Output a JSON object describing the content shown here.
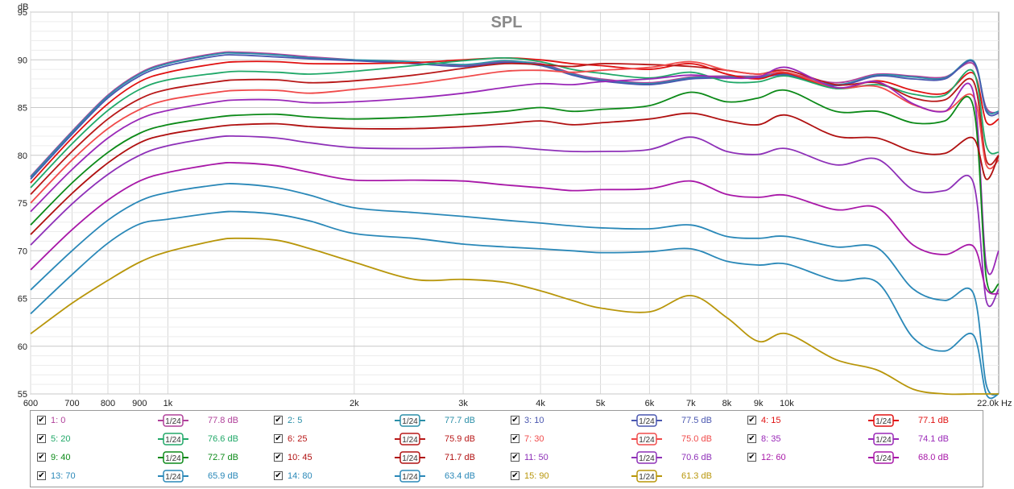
{
  "chart_data": {
    "type": "line",
    "title": "SPL",
    "ylabel": "dB",
    "xunit": "Hz",
    "xscale": "log",
    "xlim": [
      600,
      22000
    ],
    "ylim": [
      55,
      95
    ],
    "grid": true,
    "x_ticks": [
      {
        "v": 600,
        "label": "600"
      },
      {
        "v": 700,
        "label": "700"
      },
      {
        "v": 800,
        "label": "800"
      },
      {
        "v": 900,
        "label": "900"
      },
      {
        "v": 1000,
        "label": "1k"
      },
      {
        "v": 2000,
        "label": "2k"
      },
      {
        "v": 3000,
        "label": "3k"
      },
      {
        "v": 4000,
        "label": "4k"
      },
      {
        "v": 5000,
        "label": "5k"
      },
      {
        "v": 6000,
        "label": "6k"
      },
      {
        "v": 7000,
        "label": "7k"
      },
      {
        "v": 8000,
        "label": "8k"
      },
      {
        "v": 9000,
        "label": "9k"
      },
      {
        "v": 10000,
        "label": "10k"
      },
      {
        "v": 22000,
        "label": "22.0k"
      }
    ],
    "y_ticks": [
      55,
      60,
      65,
      70,
      75,
      80,
      85,
      90,
      95
    ],
    "x": [
      600,
      700,
      800,
      900,
      1000,
      1200,
      1300,
      1500,
      1700,
      2000,
      2500,
      3000,
      3500,
      4000,
      4500,
      5000,
      6000,
      7000,
      8000,
      9000,
      10000,
      12000,
      14000,
      16000,
      18000,
      20000,
      21000,
      22000
    ],
    "series": [
      {
        "name": "1: 0",
        "legend_value": "77.8 dB",
        "color": "#b0409a",
        "values": [
          77.8,
          82.5,
          86.3,
          88.6,
          89.7,
          90.7,
          90.8,
          90.6,
          90.3,
          90.0,
          89.6,
          89.4,
          89.8,
          89.6,
          88.6,
          88.0,
          87.6,
          88.2,
          88.3,
          88.3,
          88.6,
          87.6,
          88.5,
          88.3,
          88.2,
          89.6,
          85.0,
          84.5
        ]
      },
      {
        "name": "2: 5",
        "legend_value": "77.7 dB",
        "color": "#2a8fa8",
        "values": [
          77.7,
          82.4,
          86.2,
          88.5,
          89.6,
          90.6,
          90.7,
          90.5,
          90.2,
          90.0,
          89.8,
          89.5,
          89.9,
          89.5,
          88.5,
          87.9,
          87.5,
          88.1,
          88.2,
          88.2,
          88.5,
          87.4,
          88.4,
          88.2,
          88.1,
          89.9,
          84.8,
          84.6
        ]
      },
      {
        "name": "3: 10",
        "legend_value": "77.5 dB",
        "color": "#4a57b0",
        "values": [
          77.5,
          82.2,
          86.0,
          88.3,
          89.4,
          90.4,
          90.5,
          90.3,
          90.1,
          89.9,
          89.6,
          89.3,
          89.7,
          89.4,
          88.4,
          87.8,
          87.4,
          88.0,
          88.1,
          88.1,
          88.4,
          87.3,
          88.3,
          88.0,
          88.0,
          89.8,
          84.6,
          84.4
        ]
      },
      {
        "name": "4: 15",
        "legend_value": "77.1 dB",
        "color": "#e01010",
        "values": [
          77.1,
          81.8,
          85.4,
          87.7,
          88.7,
          89.6,
          89.8,
          89.8,
          89.6,
          89.6,
          89.7,
          90.0,
          90.2,
          90.0,
          89.6,
          89.4,
          89.0,
          89.6,
          88.5,
          88.0,
          88.6,
          87.0,
          87.8,
          86.8,
          86.5,
          88.6,
          83.5,
          83.8
        ]
      },
      {
        "name": "5: 20",
        "legend_value": "76.6 dB",
        "color": "#20a868",
        "values": [
          76.6,
          81.2,
          84.7,
          86.9,
          87.9,
          88.6,
          88.8,
          88.7,
          88.5,
          88.8,
          89.4,
          89.9,
          90.2,
          89.8,
          89.0,
          88.6,
          88.1,
          88.7,
          87.7,
          87.7,
          88.3,
          87.0,
          87.4,
          86.4,
          86.3,
          88.8,
          81.0,
          80.3
        ]
      },
      {
        "name": "6: 25",
        "legend_value": "75.9 dB",
        "color": "#b81818",
        "values": [
          75.9,
          80.4,
          83.8,
          85.9,
          86.9,
          87.7,
          87.9,
          87.9,
          87.6,
          87.8,
          88.4,
          89.1,
          89.6,
          89.5,
          89.3,
          89.6,
          89.5,
          89.3,
          88.9,
          88.5,
          88.9,
          87.4,
          87.6,
          86.0,
          85.8,
          87.8,
          79.5,
          80.0
        ]
      },
      {
        "name": "7: 30",
        "legend_value": "75.0 dB",
        "color": "#f04a4a",
        "values": [
          75.0,
          79.5,
          82.8,
          84.8,
          85.8,
          86.6,
          86.8,
          86.8,
          86.5,
          86.9,
          87.5,
          88.2,
          88.8,
          88.9,
          88.7,
          88.9,
          89.2,
          89.8,
          88.9,
          88.5,
          88.7,
          87.1,
          87.2,
          85.3,
          84.6,
          86.2,
          79.0,
          79.5
        ]
      },
      {
        "name": "8: 35",
        "legend_value": "74.1 dB",
        "color": "#9a28b8",
        "values": [
          74.1,
          78.5,
          81.8,
          83.8,
          84.7,
          85.6,
          85.8,
          85.8,
          85.5,
          85.6,
          86.0,
          86.5,
          87.1,
          87.5,
          87.4,
          87.7,
          88.0,
          88.4,
          88.1,
          88.2,
          89.2,
          87.1,
          87.7,
          85.4,
          84.6,
          86.7,
          68.5,
          70.0
        ]
      },
      {
        "name": "9: 40",
        "legend_value": "72.7 dB",
        "color": "#0c8a18",
        "values": [
          72.7,
          77.1,
          80.3,
          82.3,
          83.2,
          84.0,
          84.2,
          84.3,
          84.0,
          83.8,
          84.0,
          84.3,
          84.6,
          85.0,
          84.6,
          84.8,
          85.2,
          86.6,
          85.6,
          86.0,
          86.8,
          84.6,
          84.6,
          83.4,
          83.6,
          85.2,
          67.2,
          66.5
        ]
      },
      {
        "name": "10: 45",
        "legend_value": "71.7 dB",
        "color": "#b01010",
        "values": [
          71.7,
          76.0,
          79.2,
          81.3,
          82.2,
          83.0,
          83.2,
          83.3,
          83.0,
          82.8,
          82.8,
          83.0,
          83.3,
          83.6,
          83.2,
          83.4,
          83.8,
          84.4,
          83.6,
          83.2,
          84.2,
          82.0,
          81.8,
          80.4,
          80.2,
          81.8,
          77.5,
          80.0
        ]
      },
      {
        "name": "11: 50",
        "legend_value": "70.6 dB",
        "color": "#8e30b8",
        "values": [
          70.6,
          74.9,
          78.0,
          80.0,
          81.0,
          81.9,
          82.0,
          81.8,
          81.3,
          80.8,
          80.7,
          80.8,
          80.9,
          80.6,
          80.4,
          80.4,
          80.6,
          81.9,
          80.4,
          80.1,
          80.7,
          79.0,
          79.6,
          76.4,
          76.3,
          77.2,
          64.8,
          66.0
        ]
      },
      {
        "name": "12: 60",
        "legend_value": "68.0 dB",
        "color": "#a818a8",
        "values": [
          68.0,
          72.2,
          75.3,
          77.3,
          78.2,
          79.1,
          79.2,
          78.9,
          78.2,
          77.4,
          77.4,
          77.3,
          76.9,
          76.6,
          76.3,
          76.4,
          76.5,
          77.3,
          75.9,
          75.6,
          75.8,
          74.3,
          74.5,
          70.6,
          69.6,
          70.5,
          66.0,
          65.5
        ]
      },
      {
        "name": "13: 70",
        "legend_value": "65.9 dB",
        "color": "#2a88b8",
        "values": [
          65.9,
          70.0,
          73.2,
          75.2,
          76.1,
          76.9,
          77.0,
          76.6,
          75.8,
          74.5,
          74.0,
          73.6,
          73.2,
          72.9,
          72.6,
          72.4,
          72.3,
          72.7,
          71.5,
          71.3,
          71.5,
          70.4,
          70.3,
          66.0,
          64.8,
          65.6,
          56.0,
          55.0
        ]
      },
      {
        "name": "14: 80",
        "legend_value": "63.4 dB",
        "color": "#2a88b8",
        "values": [
          63.4,
          67.5,
          70.8,
          72.8,
          73.3,
          74.0,
          74.1,
          73.8,
          73.1,
          71.8,
          71.3,
          70.7,
          70.4,
          70.2,
          70.0,
          69.8,
          69.9,
          70.2,
          68.9,
          68.5,
          68.6,
          66.9,
          66.7,
          60.9,
          59.5,
          61.2,
          55.0,
          55.0
        ]
      },
      {
        "name": "15: 90",
        "legend_value": "61.3 dB",
        "color": "#b8960a",
        "values": [
          61.3,
          64.5,
          66.9,
          68.8,
          69.9,
          71.1,
          71.3,
          71.1,
          70.2,
          68.8,
          67.0,
          67.0,
          66.7,
          65.8,
          64.8,
          64.0,
          63.6,
          65.3,
          63.0,
          60.5,
          61.3,
          58.6,
          57.5,
          55.5,
          55.0,
          55.0,
          55.0,
          55.0
        ]
      }
    ]
  },
  "legend": {
    "smoothing_label": "1/24",
    "items": [
      {
        "name": "1: 0",
        "value": "77.8 dB",
        "color": "#b0409a"
      },
      {
        "name": "2: 5",
        "value": "77.7 dB",
        "color": "#2a8fa8"
      },
      {
        "name": "3: 10",
        "value": "77.5 dB",
        "color": "#4a57b0"
      },
      {
        "name": "4: 15",
        "value": "77.1 dB",
        "color": "#e01010"
      },
      {
        "name": "5: 20",
        "value": "76.6 dB",
        "color": "#20a868"
      },
      {
        "name": "6: 25",
        "value": "75.9 dB",
        "color": "#b81818"
      },
      {
        "name": "7: 30",
        "value": "75.0 dB",
        "color": "#f04a4a"
      },
      {
        "name": "8: 35",
        "value": "74.1 dB",
        "color": "#9a28b8"
      },
      {
        "name": "9: 40",
        "value": "72.7 dB",
        "color": "#0c8a18"
      },
      {
        "name": "10: 45",
        "value": "71.7 dB",
        "color": "#b01010"
      },
      {
        "name": "11: 50",
        "value": "70.6 dB",
        "color": "#8e30b8"
      },
      {
        "name": "12: 60",
        "value": "68.0 dB",
        "color": "#a818a8"
      },
      {
        "name": "13: 70",
        "value": "65.9 dB",
        "color": "#2a88b8"
      },
      {
        "name": "14: 80",
        "value": "63.4 dB",
        "color": "#2a88b8"
      },
      {
        "name": "15: 90",
        "value": "61.3 dB",
        "color": "#b8960a"
      }
    ]
  }
}
